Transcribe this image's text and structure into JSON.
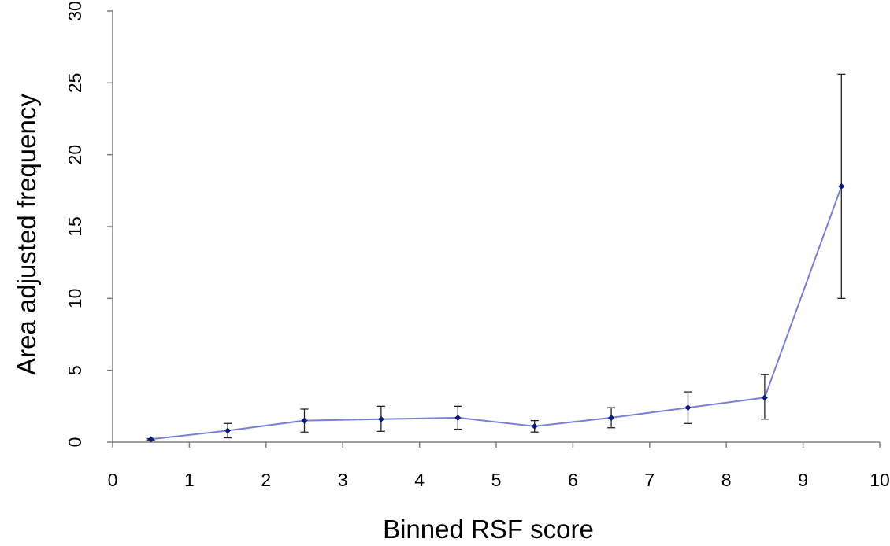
{
  "chart_data": {
    "type": "line",
    "title": "",
    "xlabel": "Binned RSF score",
    "ylabel": "Area adjusted frequency",
    "xlim": [
      0,
      10
    ],
    "ylim": [
      0,
      30
    ],
    "xticks": [
      "0",
      "1",
      "2",
      "3",
      "4",
      "5",
      "6",
      "7",
      "8",
      "9",
      "10"
    ],
    "yticks": [
      "0",
      "5",
      "10",
      "15",
      "20",
      "25",
      "30"
    ],
    "grid": false,
    "legend": "none",
    "series": [
      {
        "x": [
          0.5,
          1.5,
          2.5,
          3.5,
          4.5,
          5.5,
          6.5,
          7.5,
          8.5,
          9.5
        ],
        "values": [
          0.2,
          0.8,
          1.5,
          1.6,
          1.7,
          1.1,
          1.7,
          2.4,
          3.1,
          17.8
        ],
        "error_low": [
          0.15,
          0.3,
          0.7,
          0.75,
          0.9,
          0.7,
          1.0,
          1.3,
          1.6,
          10.0
        ],
        "error_high": [
          0.25,
          1.3,
          2.3,
          2.5,
          2.5,
          1.5,
          2.4,
          3.5,
          4.7,
          25.6
        ],
        "line_color": "#7b7fd4",
        "marker_color": "#0a1a7a",
        "error_color": "#222222"
      }
    ]
  }
}
